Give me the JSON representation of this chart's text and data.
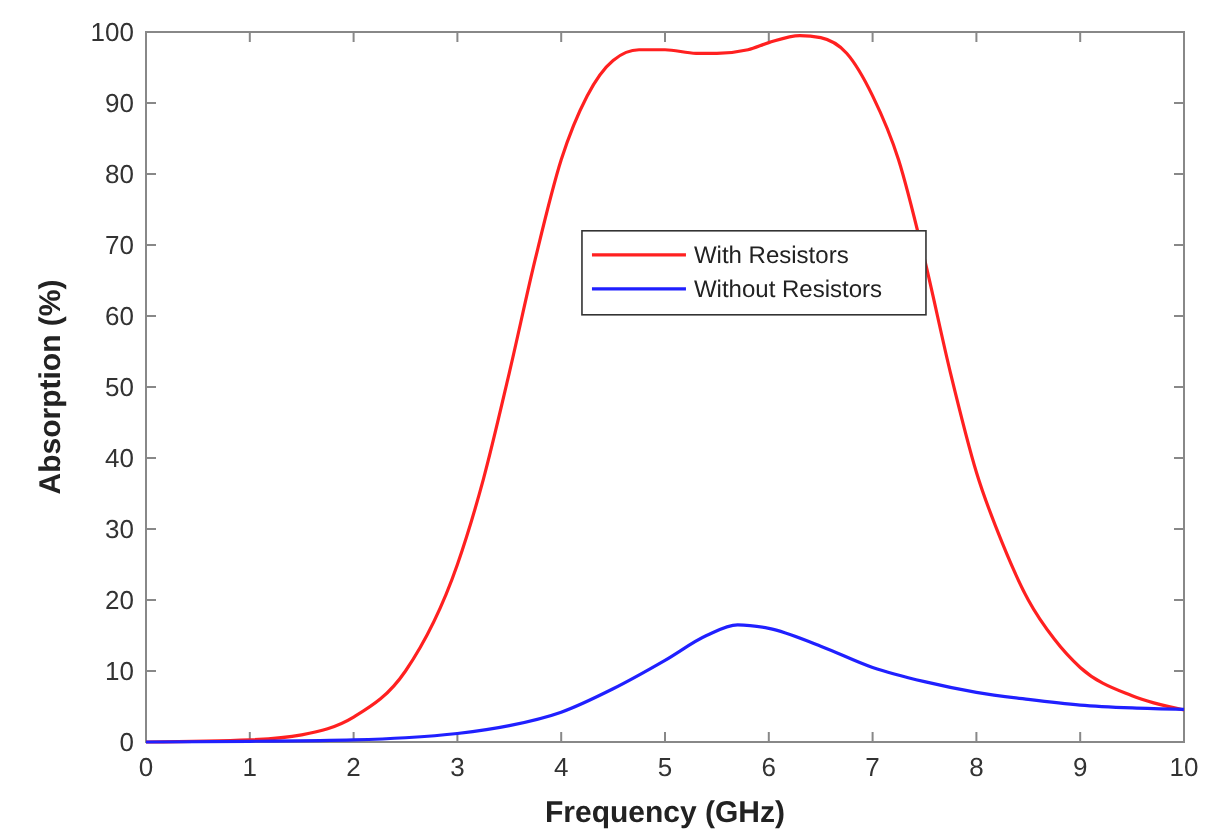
{
  "chart_data": {
    "type": "line",
    "xlabel": "Frequency (GHz)",
    "ylabel": "Absorption (%)",
    "xlim": [
      0,
      10
    ],
    "ylim": [
      0,
      100
    ],
    "xticks": [
      0,
      1,
      2,
      3,
      4,
      5,
      6,
      7,
      8,
      9,
      10
    ],
    "yticks": [
      0,
      10,
      20,
      30,
      40,
      50,
      60,
      70,
      80,
      90,
      100
    ],
    "grid": false,
    "legend": "top",
    "marker": "none",
    "line_style": "solid",
    "series": [
      {
        "name": "With Resistors",
        "color": "#ff2020",
        "x": [
          0,
          1,
          1.5,
          2,
          2.5,
          3,
          3.25,
          3.5,
          3.75,
          4,
          4.25,
          4.5,
          4.75,
          5,
          5.3,
          5.5,
          5.8,
          6,
          6.3,
          6.5,
          6.75,
          7,
          7.25,
          7.5,
          7.75,
          8,
          8.25,
          8.5,
          8.75,
          9,
          9.5,
          10
        ],
        "values": [
          0,
          0.3,
          1,
          3.5,
          10,
          25,
          37,
          52,
          68,
          82,
          91,
          96,
          97.5,
          97.5,
          97,
          97,
          97.5,
          98.5,
          99.5,
          99.2,
          97,
          91,
          82,
          68,
          52,
          38,
          28,
          20,
          14.5,
          10.5,
          6.5,
          4.5
        ]
      },
      {
        "name": "Without Resistors",
        "color": "#2020ff",
        "x": [
          0,
          1,
          2,
          2.5,
          3,
          3.5,
          4,
          4.5,
          5,
          5.4,
          5.7,
          6,
          6.5,
          7,
          7.5,
          8,
          8.5,
          9,
          9.5,
          10
        ],
        "values": [
          0,
          0.1,
          0.3,
          0.6,
          1.2,
          2.3,
          4.2,
          7.5,
          11.5,
          15,
          16.5,
          16,
          13.5,
          10.5,
          8.5,
          7,
          6,
          5.2,
          4.8,
          4.6
        ]
      }
    ]
  }
}
